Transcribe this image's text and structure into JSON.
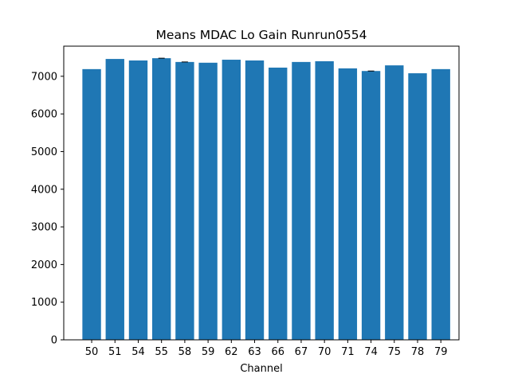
{
  "chart_data": {
    "type": "bar",
    "title": "Means MDAC Lo Gain Runrun0554",
    "xlabel": "Channel",
    "ylabel": "",
    "categories": [
      "50",
      "51",
      "54",
      "55",
      "58",
      "59",
      "62",
      "63",
      "66",
      "67",
      "70",
      "71",
      "74",
      "75",
      "78",
      "79"
    ],
    "values": [
      7190,
      7460,
      7420,
      7480,
      7380,
      7360,
      7440,
      7420,
      7230,
      7380,
      7400,
      7210,
      7140,
      7290,
      7080,
      7190
    ],
    "errors": [
      0,
      0,
      0,
      15,
      15,
      0,
      0,
      0,
      0,
      0,
      0,
      0,
      15,
      0,
      0,
      0
    ],
    "ylim": [
      0,
      7800
    ],
    "yticks": [
      0,
      1000,
      2000,
      3000,
      4000,
      5000,
      6000,
      7000
    ],
    "grid": false,
    "bar_color": "#1f77b4"
  }
}
